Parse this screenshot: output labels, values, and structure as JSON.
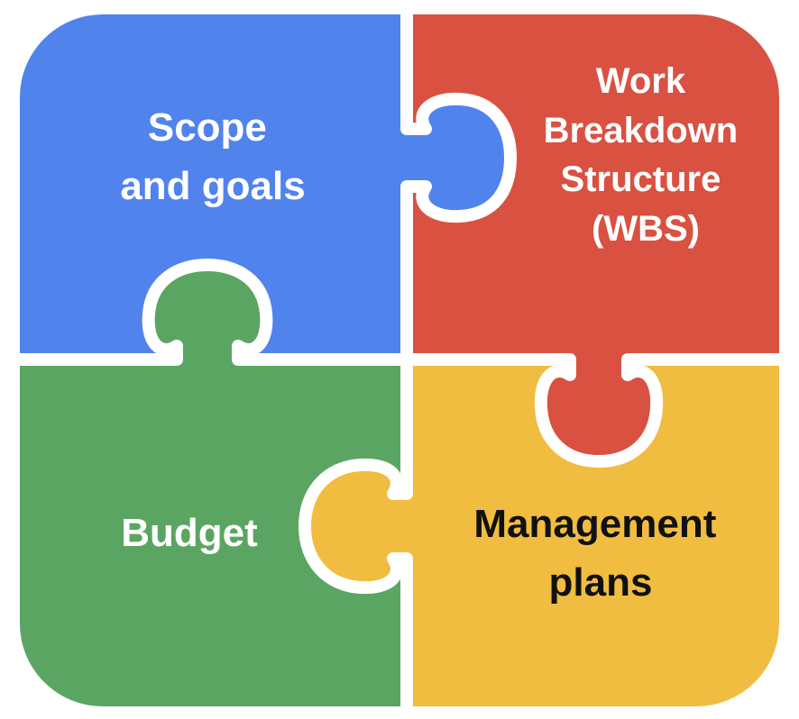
{
  "pieces": [
    {
      "key": "scope",
      "color": "#5083EC",
      "lines": [
        "Scope",
        "and goals"
      ],
      "text_color": "#FFFFFF"
    },
    {
      "key": "wbs",
      "color": "#D95141",
      "lines": [
        "Work",
        "Breakdown",
        "Structure",
        "(WBS)"
      ],
      "text_color": "#FFFFFF"
    },
    {
      "key": "budget",
      "color": "#5BA562",
      "lines": [
        "Budget"
      ],
      "text_color": "#FFFFFF"
    },
    {
      "key": "management",
      "color": "#F0BD41",
      "lines": [
        "Management",
        "plans"
      ],
      "text_color": "#111111"
    }
  ],
  "separator_color": "#FFFFFF"
}
